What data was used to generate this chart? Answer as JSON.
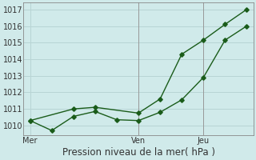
{
  "xlabel": "Pression niveau de la mer( hPa )",
  "background_color": "#d0eaea",
  "grid_color": "#b8d4d4",
  "line_color": "#1a5c1a",
  "ylim": [
    1009.4,
    1017.4
  ],
  "yticks": [
    1010,
    1011,
    1012,
    1013,
    1014,
    1015,
    1016,
    1017
  ],
  "xtick_labels": [
    "Mer",
    "Ven",
    "Jeu"
  ],
  "vline_color": "#888888",
  "line1_x": [
    0,
    1,
    2,
    3,
    4,
    5,
    6,
    7,
    8,
    9,
    10
  ],
  "line1_y": [
    1010.3,
    1009.7,
    1010.55,
    1010.85,
    1010.35,
    1010.3,
    1010.8,
    1011.55,
    1012.9,
    1015.15,
    1016.0
  ],
  "line2_x": [
    0,
    2,
    3,
    5,
    6,
    7,
    8,
    9,
    10
  ],
  "line2_y": [
    1010.3,
    1011.0,
    1011.1,
    1010.75,
    1011.6,
    1014.3,
    1015.15,
    1016.1,
    1017.0
  ],
  "marker": "D",
  "markersize": 2.8,
  "linewidth": 1.0,
  "xlabel_fontsize": 8.5,
  "tick_fontsize": 7
}
